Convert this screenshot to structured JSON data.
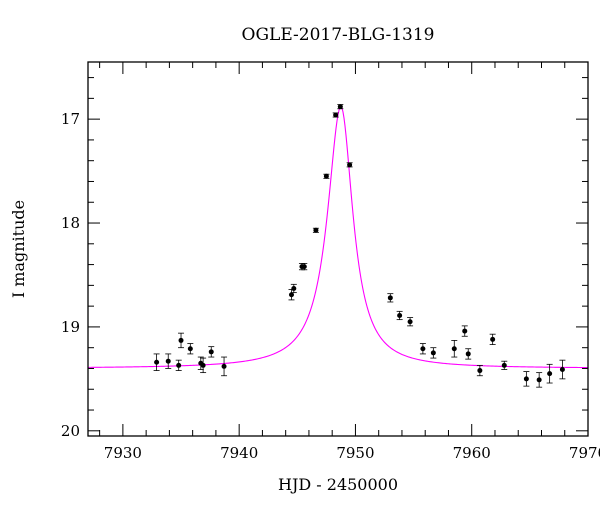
{
  "chart_data": {
    "type": "scatter",
    "title": "OGLE-2017-BLG-1319",
    "xlabel": "HJD - 2450000",
    "ylabel": "I magnitude",
    "xlim": [
      7927,
      7970
    ],
    "ylim": [
      20.05,
      16.45
    ],
    "y_inverted": true,
    "x_ticks": [
      7930,
      7940,
      7950,
      7960,
      7970
    ],
    "y_ticks": [
      17,
      18,
      19,
      20
    ],
    "x_tick_labels": [
      "7930",
      "7940",
      "7950",
      "7960",
      "7970"
    ],
    "y_tick_labels": [
      "17",
      "18",
      "19",
      "20"
    ],
    "grid": false,
    "colors": {
      "data": "#000000",
      "model": "#ff00ff"
    },
    "series": [
      {
        "kind": "points",
        "points": [
          {
            "x": 7932.9,
            "y": 19.34,
            "err": 0.08
          },
          {
            "x": 7933.9,
            "y": 19.33,
            "err": 0.07
          },
          {
            "x": 7934.8,
            "y": 19.37,
            "err": 0.05
          },
          {
            "x": 7935.0,
            "y": 19.13,
            "err": 0.07
          },
          {
            "x": 7935.8,
            "y": 19.21,
            "err": 0.05
          },
          {
            "x": 7936.7,
            "y": 19.35,
            "err": 0.06
          },
          {
            "x": 7936.9,
            "y": 19.37,
            "err": 0.07
          },
          {
            "x": 7937.6,
            "y": 19.24,
            "err": 0.05
          },
          {
            "x": 7938.7,
            "y": 19.38,
            "err": 0.09
          },
          {
            "x": 7944.5,
            "y": 18.69,
            "err": 0.05
          },
          {
            "x": 7944.7,
            "y": 18.63,
            "err": 0.04
          },
          {
            "x": 7945.4,
            "y": 18.42,
            "err": 0.03
          },
          {
            "x": 7945.6,
            "y": 18.42,
            "err": 0.03
          },
          {
            "x": 7946.6,
            "y": 18.07,
            "err": 0.02
          },
          {
            "x": 7947.5,
            "y": 17.55,
            "err": 0.02
          },
          {
            "x": 7948.3,
            "y": 16.96,
            "err": 0.02
          },
          {
            "x": 7948.7,
            "y": 16.88,
            "err": 0.02
          },
          {
            "x": 7949.5,
            "y": 17.44,
            "err": 0.02
          },
          {
            "x": 7953.0,
            "y": 18.72,
            "err": 0.04
          },
          {
            "x": 7953.8,
            "y": 18.89,
            "err": 0.04
          },
          {
            "x": 7954.7,
            "y": 18.95,
            "err": 0.04
          },
          {
            "x": 7955.8,
            "y": 19.21,
            "err": 0.05
          },
          {
            "x": 7956.7,
            "y": 19.25,
            "err": 0.05
          },
          {
            "x": 7958.5,
            "y": 19.21,
            "err": 0.08
          },
          {
            "x": 7959.4,
            "y": 19.04,
            "err": 0.05
          },
          {
            "x": 7959.7,
            "y": 19.26,
            "err": 0.05
          },
          {
            "x": 7960.7,
            "y": 19.42,
            "err": 0.05
          },
          {
            "x": 7961.8,
            "y": 19.12,
            "err": 0.05
          },
          {
            "x": 7962.8,
            "y": 19.37,
            "err": 0.04
          },
          {
            "x": 7964.7,
            "y": 19.5,
            "err": 0.07
          },
          {
            "x": 7965.8,
            "y": 19.51,
            "err": 0.07
          },
          {
            "x": 7966.7,
            "y": 19.45,
            "err": 0.09
          },
          {
            "x": 7967.8,
            "y": 19.41,
            "err": 0.09
          }
        ]
      },
      {
        "kind": "model_curve",
        "params": {
          "baseline": 19.4,
          "t0": 7948.75,
          "amplitude": 2.52,
          "tau_left": 1.4,
          "tau_right": 1.25
        }
      }
    ]
  }
}
